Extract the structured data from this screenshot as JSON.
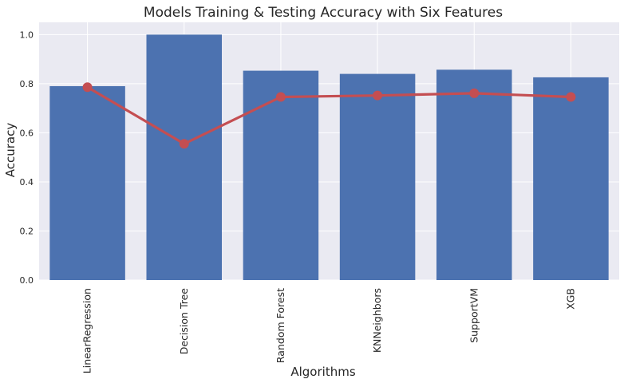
{
  "chart_data": {
    "type": "bar",
    "title": "Models Training & Testing Accuracy with Six Features",
    "xlabel": "Algorithms",
    "ylabel": "Accuracy",
    "categories": [
      "LinearRegression",
      "Decision Tree",
      "Random Forest",
      "KNNeighbors",
      "SupportVM",
      "XGB"
    ],
    "series": [
      {
        "type": "bar",
        "color": "#4C72B0",
        "values": [
          0.79,
          1.0,
          0.853,
          0.84,
          0.857,
          0.826
        ]
      },
      {
        "type": "line",
        "color": "#C44E52",
        "marker": "circle",
        "values": [
          0.786,
          0.555,
          0.746,
          0.752,
          0.761,
          0.746
        ]
      }
    ],
    "ylim": [
      0,
      1.05
    ],
    "yticks": [
      "0.0",
      "0.2",
      "0.4",
      "0.6",
      "0.8",
      "1.0"
    ],
    "grid": true,
    "style": {
      "background": "#EAEAF2",
      "grid_color": "#ffffff"
    }
  }
}
